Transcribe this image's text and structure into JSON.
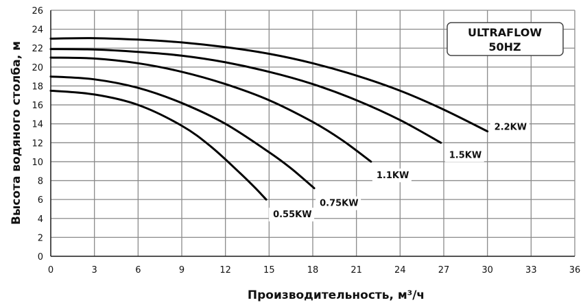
{
  "chart_data": {
    "type": "line",
    "xlabel": "Производительность, м³/ч",
    "ylabel": "Высота водяного столба, м",
    "xlim": [
      0,
      36
    ],
    "ylim": [
      0,
      26
    ],
    "xticks": [
      0,
      3,
      6,
      9,
      12,
      15,
      18,
      21,
      24,
      27,
      30,
      33,
      36
    ],
    "yticks": [
      0,
      2,
      4,
      6,
      8,
      10,
      12,
      14,
      16,
      18,
      20,
      22,
      24,
      26
    ],
    "grid": true,
    "annotation_box": [
      "ULTRAFLOW",
      "50HZ"
    ],
    "series": [
      {
        "name": "0.55KW",
        "x": [
          0,
          3,
          6,
          9,
          11,
          13,
          14,
          14.8
        ],
        "y": [
          17.5,
          17.1,
          16.0,
          13.8,
          11.6,
          8.8,
          7.3,
          6.0
        ]
      },
      {
        "name": "0.75KW",
        "x": [
          0,
          3,
          6,
          9,
          12,
          15,
          16.5,
          18.1
        ],
        "y": [
          19.0,
          18.7,
          17.8,
          16.2,
          14.0,
          11.0,
          9.3,
          7.2
        ]
      },
      {
        "name": "1.1KW",
        "x": [
          0,
          3,
          6,
          9,
          12,
          15,
          18,
          20,
          22
        ],
        "y": [
          21.0,
          20.9,
          20.4,
          19.5,
          18.2,
          16.5,
          14.2,
          12.3,
          10.0
        ]
      },
      {
        "name": "1.5KW",
        "x": [
          0,
          3,
          6,
          9,
          12,
          15,
          18,
          21,
          24,
          26.8
        ],
        "y": [
          21.9,
          21.85,
          21.6,
          21.2,
          20.5,
          19.5,
          18.2,
          16.5,
          14.4,
          12.0
        ]
      },
      {
        "name": "2.2KW",
        "x": [
          0,
          3,
          6,
          9,
          12,
          15,
          18,
          21,
          24,
          27,
          30
        ],
        "y": [
          23.0,
          23.05,
          22.9,
          22.6,
          22.1,
          21.4,
          20.4,
          19.1,
          17.5,
          15.5,
          13.2
        ]
      }
    ]
  }
}
